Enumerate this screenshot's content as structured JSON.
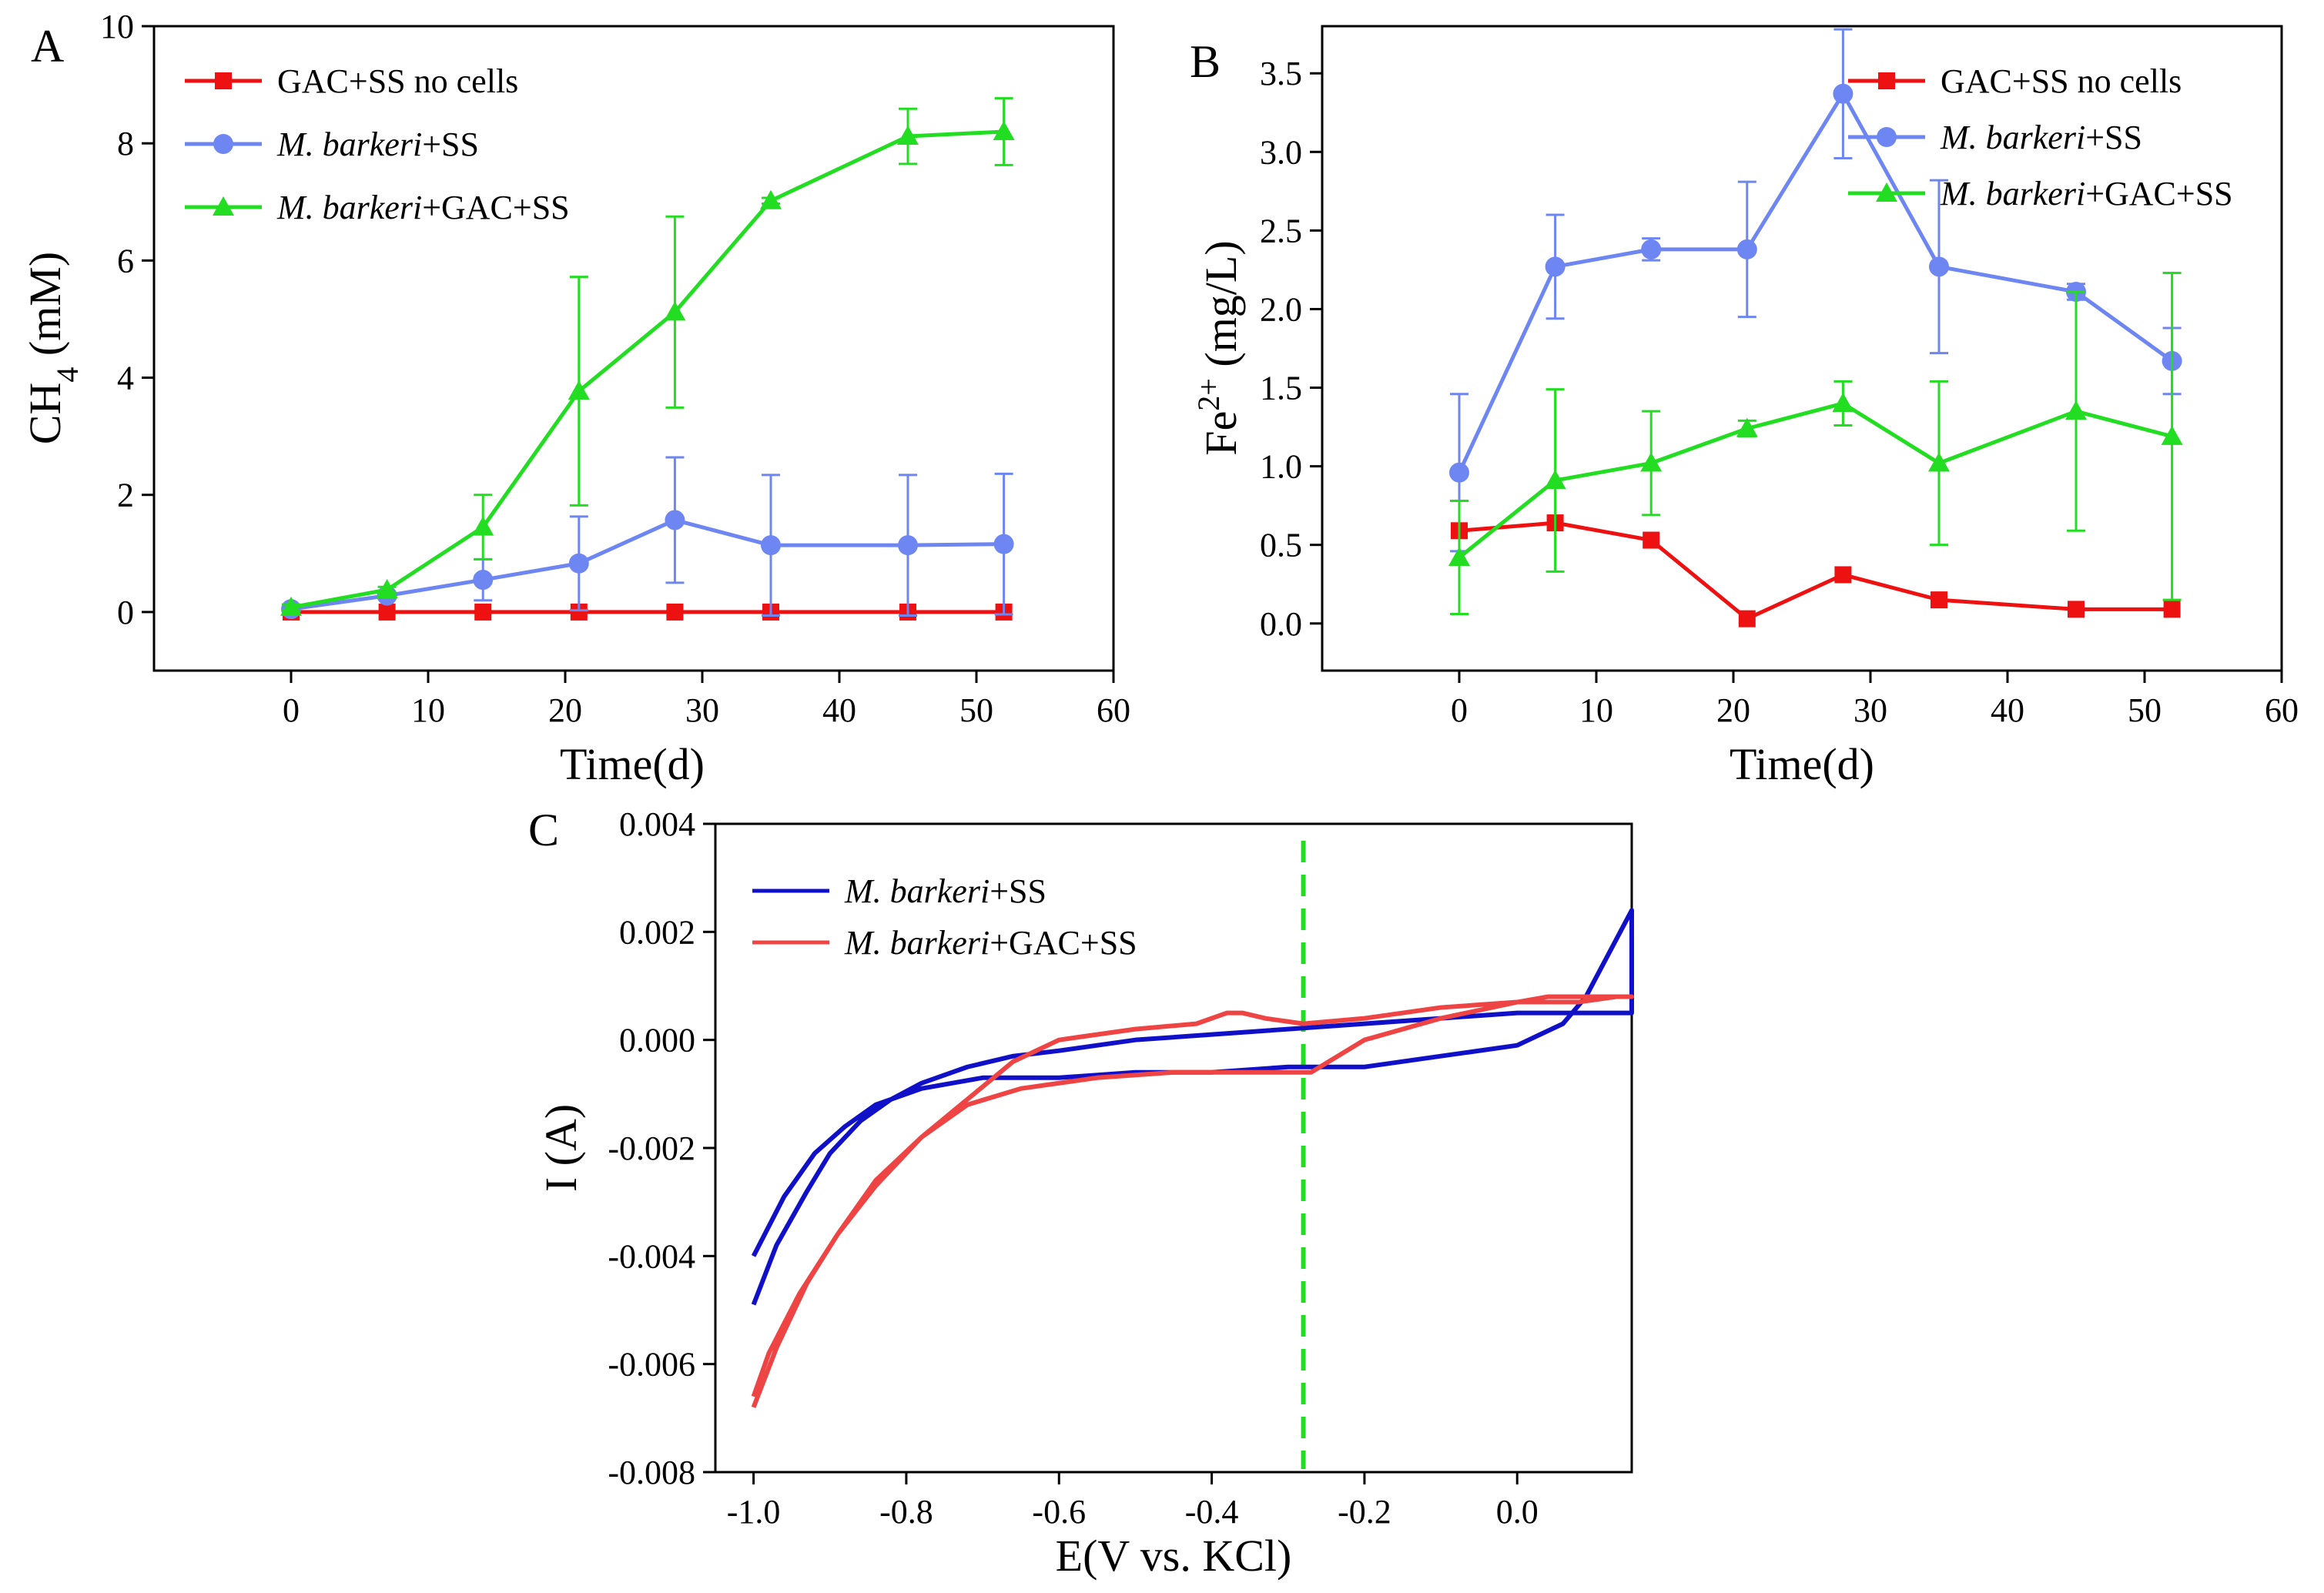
{
  "figure": {
    "panels": [
      "A",
      "B",
      "C"
    ]
  },
  "chart_data": [
    {
      "id": "A",
      "panel_label": "A",
      "type": "line",
      "xlabel": "Time(d)",
      "ylabel_main": "CH",
      "ylabel_sub": "4",
      "ylabel_tail": " (mM)",
      "xlim": [
        -10,
        60
      ],
      "ylim": [
        -1,
        10
      ],
      "xticks": [
        0,
        10,
        20,
        30,
        40,
        50,
        60
      ],
      "yticks": [
        0,
        2,
        4,
        6,
        8,
        10
      ],
      "x": [
        0,
        7,
        14,
        21,
        28,
        35,
        45,
        52
      ],
      "legend_position": "top-left",
      "series": [
        {
          "name": "GAC+SS no cells",
          "name_italic": "",
          "name_rest": "GAC+SS no cells",
          "color": "#ee1111",
          "marker": "square",
          "values": [
            0,
            0,
            0,
            0,
            0,
            0,
            0,
            0
          ],
          "errors": [
            0,
            0,
            0,
            0,
            0,
            0,
            0,
            0
          ]
        },
        {
          "name": "M. barkeri+SS",
          "name_italic": "M. barkeri",
          "name_rest": "+SS",
          "color": "#6e86f2",
          "marker": "circle",
          "values": [
            0.05,
            0.28,
            0.55,
            0.83,
            1.57,
            1.14,
            1.14,
            1.16
          ],
          "errors": [
            0.05,
            0.05,
            0.35,
            0.8,
            1.07,
            1.2,
            1.2,
            1.2
          ]
        },
        {
          "name": "M. barkeri+GAC+SS",
          "name_italic": "M. barkeri",
          "name_rest": "+GAC+SS",
          "color": "#22dd22",
          "marker": "triangle",
          "values": [
            0.08,
            0.38,
            1.45,
            3.77,
            5.12,
            7.02,
            8.12,
            8.2
          ],
          "errors": [
            0.05,
            0.05,
            0.55,
            1.95,
            1.63,
            0.05,
            0.47,
            0.57
          ]
        }
      ]
    },
    {
      "id": "B",
      "panel_label": "B",
      "type": "line",
      "xlabel": "Time(d)",
      "ylabel_main": "Fe",
      "ylabel_sup": "2+",
      "ylabel_tail": " (mg/L)",
      "xlim": [
        -10,
        60
      ],
      "ylim": [
        -0.3,
        3.8
      ],
      "xticks": [
        0,
        10,
        20,
        30,
        40,
        50,
        60
      ],
      "yticks": [
        0.0,
        0.5,
        1.0,
        1.5,
        2.0,
        2.5,
        3.0,
        3.5
      ],
      "ytick_labels": [
        "0.0",
        "0.5",
        "1.0",
        "1.5",
        "2.0",
        "2.5",
        "3.0",
        "3.5"
      ],
      "x": [
        0,
        7,
        14,
        21,
        28,
        35,
        45,
        52
      ],
      "legend_position": "top-right",
      "series": [
        {
          "name": "GAC+SS no cells",
          "name_italic": "",
          "name_rest": "GAC+SS no cells",
          "color": "#ee1111",
          "marker": "square",
          "values": [
            0.59,
            0.64,
            0.53,
            0.03,
            0.31,
            0.15,
            0.09,
            0.09
          ],
          "errors": [
            0,
            0,
            0,
            0,
            0,
            0,
            0,
            0
          ]
        },
        {
          "name": "M. barkeri+SS",
          "name_italic": "M. barkeri",
          "name_rest": "+SS",
          "color": "#6e86f2",
          "marker": "circle",
          "values": [
            0.96,
            2.27,
            2.38,
            2.38,
            3.37,
            2.27,
            2.11,
            1.67
          ],
          "errors": [
            0.5,
            0.33,
            0.07,
            0.43,
            0.41,
            0.55,
            0.05,
            0.21
          ]
        },
        {
          "name": "M. barkeri+GAC+SS",
          "name_italic": "M. barkeri",
          "name_rest": "+GAC+SS",
          "color": "#22dd22",
          "marker": "triangle",
          "values": [
            0.42,
            0.91,
            1.02,
            1.24,
            1.4,
            1.02,
            1.35,
            1.19
          ],
          "errors": [
            0.36,
            0.58,
            0.33,
            0.05,
            0.14,
            0.52,
            0.76,
            1.04
          ]
        }
      ]
    },
    {
      "id": "C",
      "panel_label": "C",
      "type": "line",
      "xlabel": "E(V vs. KCl)",
      "ylabel": "I (A)",
      "xlim": [
        -1.05,
        0.15
      ],
      "ylim": [
        -0.008,
        0.004
      ],
      "xticks": [
        -1.0,
        -0.8,
        -0.6,
        -0.4,
        -0.2,
        0.0
      ],
      "xtick_labels": [
        "-1.0",
        "-0.8",
        "-0.6",
        "-0.4",
        "-0.2",
        "0.0"
      ],
      "yticks": [
        -0.008,
        -0.006,
        -0.004,
        -0.002,
        0.0,
        0.002,
        0.004
      ],
      "ytick_labels": [
        "-0.008",
        "-0.006",
        "-0.004",
        "-0.002",
        "0.000",
        "0.002",
        "0.004"
      ],
      "reference_line": {
        "x": -0.28,
        "color": "#22dd22",
        "style": "dashed"
      },
      "legend_position": "top-left",
      "series": [
        {
          "name": "M. barkeri+SS",
          "name_italic": "M. barkeri",
          "name_rest": "+SS",
          "color": "#1010c8",
          "x": [
            -1.0,
            -0.97,
            -0.93,
            -0.9,
            -0.86,
            -0.82,
            -0.78,
            -0.72,
            -0.66,
            -0.6,
            -0.5,
            -0.4,
            -0.3,
            -0.2,
            -0.1,
            0.0,
            0.05,
            0.1,
            0.13,
            0.15,
            0.15,
            0.12,
            0.09,
            0.06,
            0.03,
            0.0,
            -0.1,
            -0.2,
            -0.3,
            -0.4,
            -0.5,
            -0.6,
            -0.7,
            -0.78,
            -0.84,
            -0.88,
            -0.92,
            -0.96,
            -1.0
          ],
          "y": [
            -0.0049,
            -0.0038,
            -0.0028,
            -0.0021,
            -0.0015,
            -0.0011,
            -0.0008,
            -0.0005,
            -0.0003,
            -0.0002,
            0.0,
            0.0001,
            0.0002,
            0.0003,
            0.0004,
            0.0005,
            0.0005,
            0.0005,
            0.0005,
            0.0005,
            0.0024,
            0.0016,
            0.0008,
            0.0003,
            0.0001,
            -0.0001,
            -0.0003,
            -0.0005,
            -0.0005,
            -0.0006,
            -0.0006,
            -0.0007,
            -0.0007,
            -0.0009,
            -0.0012,
            -0.0016,
            -0.0021,
            -0.0029,
            -0.004
          ]
        },
        {
          "name": "M. barkeri+GAC+SS",
          "name_italic": "M. barkeri",
          "name_rest": "+GAC+SS",
          "color": "#ee4444",
          "x": [
            -1.0,
            -0.97,
            -0.93,
            -0.89,
            -0.84,
            -0.78,
            -0.72,
            -0.66,
            -0.6,
            -0.5,
            -0.42,
            -0.38,
            -0.36,
            -0.33,
            -0.28,
            -0.2,
            -0.1,
            0.0,
            0.08,
            0.13,
            0.15,
            0.15,
            0.12,
            0.08,
            0.04,
            0.0,
            -0.1,
            -0.2,
            -0.27,
            -0.35,
            -0.45,
            -0.55,
            -0.65,
            -0.72,
            -0.78,
            -0.84,
            -0.89,
            -0.94,
            -0.98,
            -1.0
          ],
          "y": [
            -0.0068,
            -0.0057,
            -0.0045,
            -0.0036,
            -0.0027,
            -0.0018,
            -0.0011,
            -0.0004,
            0.0,
            0.0002,
            0.0003,
            0.0005,
            0.0005,
            0.0004,
            0.0003,
            0.0004,
            0.0006,
            0.0007,
            0.0007,
            0.0008,
            0.0008,
            0.0008,
            0.0008,
            0.0008,
            0.0008,
            0.0007,
            0.0004,
            0.0,
            -0.0006,
            -0.0006,
            -0.0006,
            -0.0007,
            -0.0009,
            -0.0012,
            -0.0018,
            -0.0026,
            -0.0036,
            -0.0047,
            -0.0058,
            -0.0066
          ]
        }
      ]
    }
  ]
}
